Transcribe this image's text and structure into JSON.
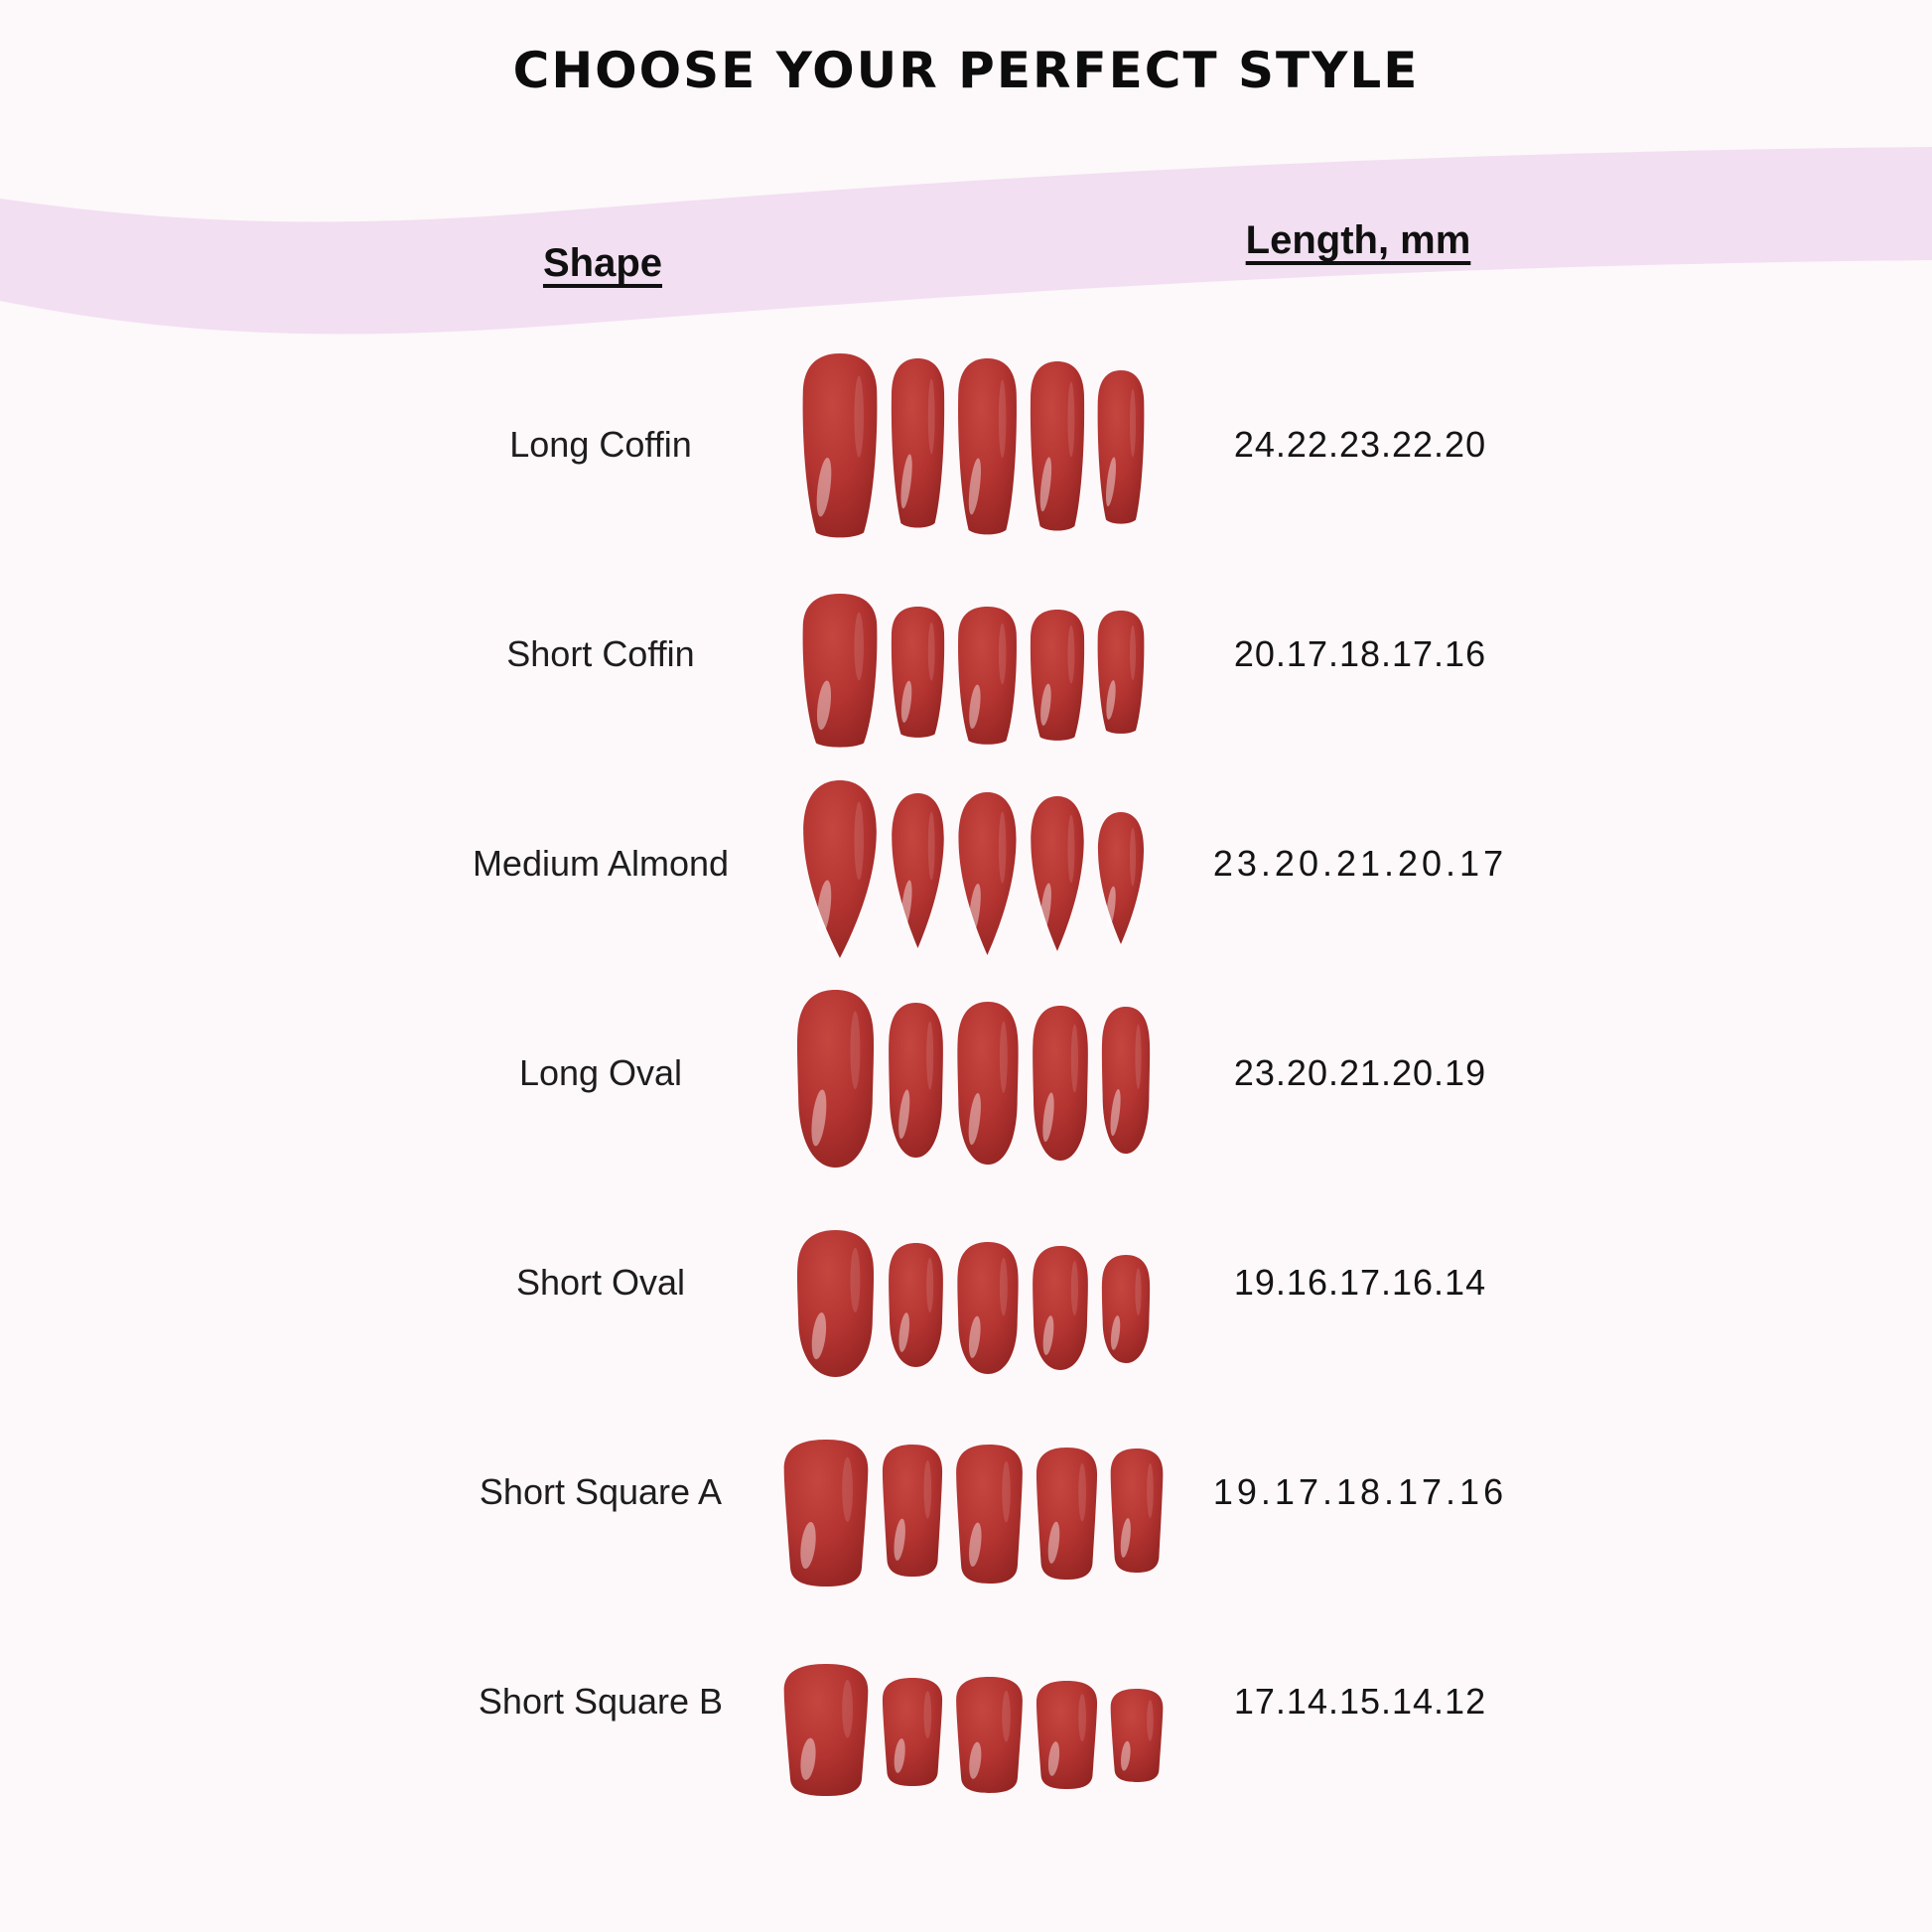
{
  "title": "CHOOSE YOUR PERFECT STYLE",
  "columns": {
    "shape": "Shape",
    "length": "Length, mm"
  },
  "rows": [
    {
      "shape": "Long Coffin",
      "style": "coffin",
      "length_mm": "24.22.23.22.20"
    },
    {
      "shape": "Short Coffin",
      "style": "coffin",
      "length_mm": "20.17.18.17.16"
    },
    {
      "shape": "Medium Almond",
      "style": "almond",
      "length_mm": "23.20.21.20.17"
    },
    {
      "shape": "Long Oval",
      "style": "oval",
      "length_mm": "23.20.21.20.19"
    },
    {
      "shape": "Short Oval",
      "style": "oval",
      "length_mm": "19.16.17.16.14"
    },
    {
      "shape": "Short Square A",
      "style": "square",
      "length_mm": "19.17.18.17.16"
    },
    {
      "shape": "Short Square B",
      "style": "square",
      "length_mm": "17.14.15.14.12"
    }
  ],
  "colors": {
    "background": "#fdf8fa",
    "band": "#f2dff1",
    "title_text": "#0c0c0c",
    "body_text": "#1d1d1d",
    "nail_light": "#c5453f",
    "nail_main": "#b43431",
    "nail_dark": "#8e2220",
    "nail_shine": "#ffffff"
  },
  "chart_data": {
    "type": "table",
    "title": "CHOOSE YOUR PERFECT STYLE",
    "columns": [
      "Shape",
      "Length, mm"
    ],
    "rows": [
      [
        "Long Coffin",
        "24.22.23.22.20"
      ],
      [
        "Short Coffin",
        "20.17.18.17.16"
      ],
      [
        "Medium Almond",
        "23.20.21.20.17"
      ],
      [
        "Long Oval",
        "23.20.21.20.19"
      ],
      [
        "Short Oval",
        "19.16.17.16.14"
      ],
      [
        "Short Square A",
        "19.17.18.17.16"
      ],
      [
        "Short Square B",
        "17.14.15.14.12"
      ]
    ],
    "notes": "Each row shows a set of 5 red press-on nails (thumb, index, middle, ring, pinky); the five dot-separated numbers are the nail lengths in mm for those fingers."
  }
}
